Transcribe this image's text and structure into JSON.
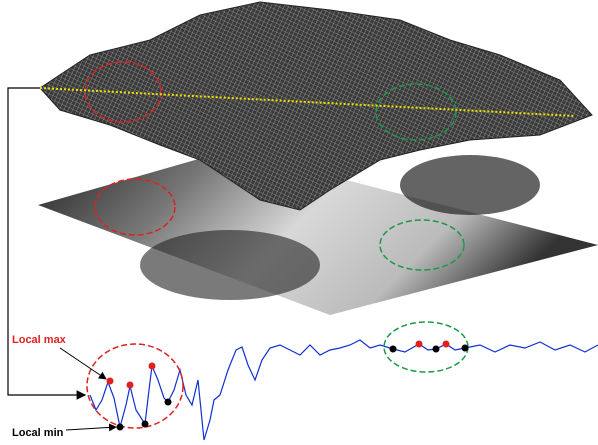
{
  "annotations": {
    "local_max": "Local max",
    "local_min": "Local min"
  }
}
